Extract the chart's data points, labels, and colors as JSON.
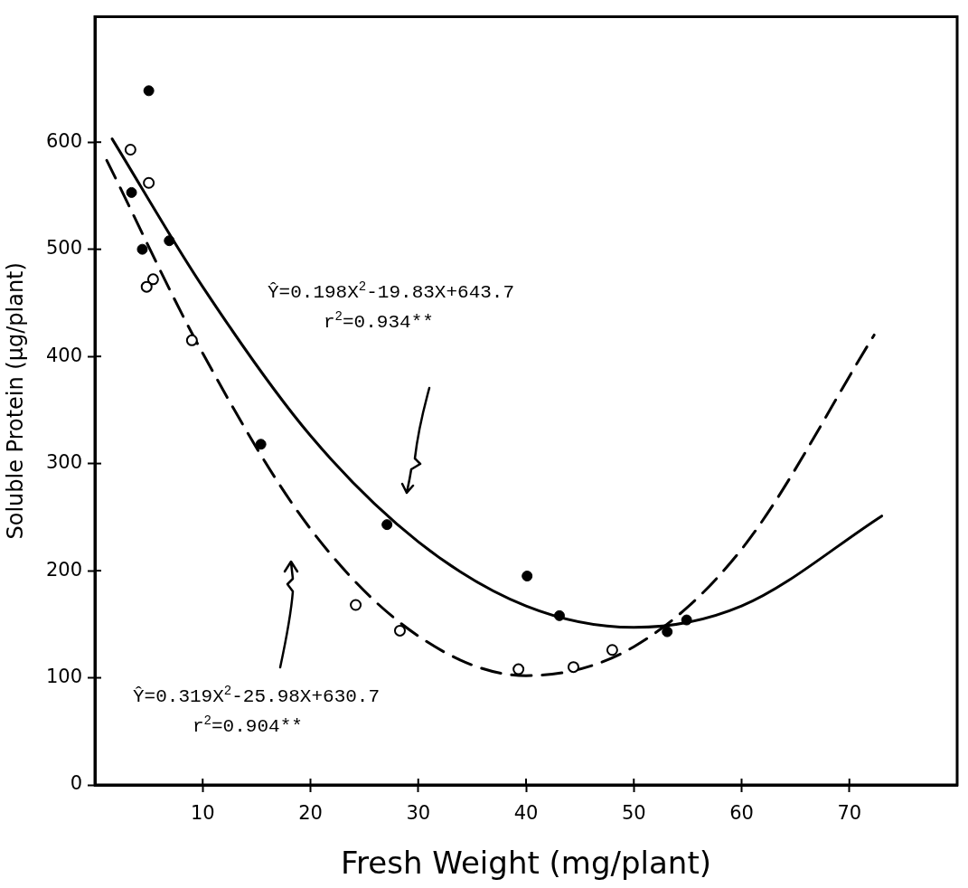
{
  "chart_data": {
    "type": "scatter",
    "xlabel": "Fresh Weight (mg/plant)",
    "ylabel": "Soluble Protein (μg/plant)",
    "xlim": [
      0,
      80
    ],
    "xticks": [
      10,
      20,
      30,
      40,
      50,
      60,
      70
    ],
    "ylim": [
      0,
      717
    ],
    "yticks": [
      0,
      100,
      200,
      300,
      400,
      500,
      600
    ],
    "grid": false,
    "legend": false,
    "series": [
      {
        "color": "#000000",
        "marker": "circle",
        "x": [
          5.0,
          3.4,
          6.9,
          4.4,
          15.4,
          27.1,
          40.1,
          43.1,
          53.1,
          54.9
        ],
        "values": [
          648,
          553,
          508,
          500,
          318,
          243,
          195,
          158,
          143,
          154
        ]
      },
      {
        "color": "#000000",
        "marker": "circle",
        "x": [
          3.3,
          5.0,
          5.4,
          4.8,
          9.0,
          24.2,
          28.3,
          39.3,
          44.4,
          48.0
        ],
        "values": [
          593,
          562,
          472,
          465,
          415,
          168,
          144,
          108,
          110,
          126
        ]
      },
      {
        "type": "line",
        "color": "#000000",
        "marker": "none",
        "line_style": "solid",
        "x": [
          1.6,
          10,
          20,
          30,
          40,
          50,
          60,
          73
        ],
        "values": [
          603,
          465,
          326,
          227,
          167,
          147,
          167,
          251
        ]
      },
      {
        "type": "line",
        "color": "#000000",
        "marker": "none",
        "line_style": "dashed",
        "x": [
          1.1,
          10,
          20,
          30,
          40,
          50,
          60,
          72.3
        ],
        "values": [
          583,
          403,
          239,
          139,
          102,
          129,
          220,
          420
        ]
      }
    ],
    "annotations": [
      "Ŷ=0.198X$^{2}$-19.83X+643.7",
      "r$^{2}$=0.934**",
      "Ŷ=0.319X$^{2}$-25.98X+630.7",
      "r$^{2}$=0.904**"
    ]
  }
}
